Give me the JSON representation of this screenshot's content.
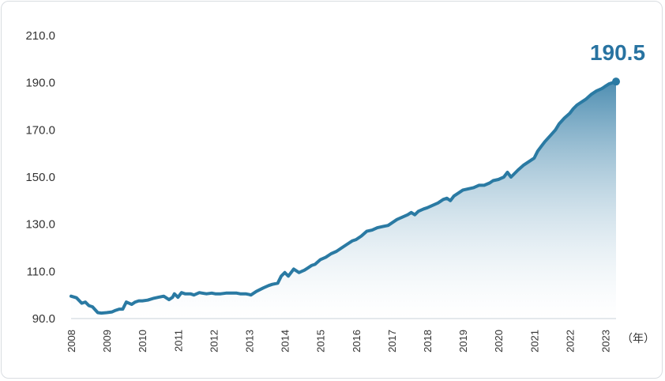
{
  "chart_data": {
    "type": "area",
    "title": "",
    "xlabel": "",
    "ylabel": "",
    "x_unit_label": "（年）",
    "ylim": [
      90.0,
      210.0
    ],
    "y_ticks": [
      "90.0",
      "110.0",
      "130.0",
      "150.0",
      "170.0",
      "190.0",
      "210.0"
    ],
    "x_ticks": [
      "2008",
      "2009",
      "2010",
      "2011",
      "2012",
      "2013",
      "2014",
      "2015",
      "2016",
      "2017",
      "2018",
      "2019",
      "2020",
      "2021",
      "2022",
      "2023"
    ],
    "x_range": [
      2008.0,
      2023.3
    ],
    "latest_value_label": "190.5",
    "grid": false,
    "series": [
      {
        "x": [
          2008.0,
          2008.15,
          2008.3,
          2008.4,
          2008.5,
          2008.6,
          2008.75,
          2008.85,
          2009.0,
          2009.15,
          2009.25,
          2009.35,
          2009.45,
          2009.55,
          2009.7,
          2009.8,
          2009.9,
          2010.0,
          2010.15,
          2010.3,
          2010.45,
          2010.6,
          2010.75,
          2010.85,
          2010.9,
          2011.0,
          2011.1,
          2011.2,
          2011.35,
          2011.45,
          2011.6,
          2011.8,
          2011.95,
          2012.05,
          2012.2,
          2012.35,
          2012.5,
          2012.65,
          2012.75,
          2012.9,
          2013.0,
          2013.05,
          2013.2,
          2013.4,
          2013.55,
          2013.65,
          2013.8,
          2013.9,
          2014.0,
          2014.1,
          2014.25,
          2014.4,
          2014.55,
          2014.65,
          2014.75,
          2014.85,
          2015.0,
          2015.15,
          2015.3,
          2015.45,
          2015.6,
          2015.75,
          2015.9,
          2016.0,
          2016.15,
          2016.3,
          2016.45,
          2016.6,
          2016.75,
          2016.9,
          2017.0,
          2017.15,
          2017.3,
          2017.45,
          2017.55,
          2017.65,
          2017.75,
          2017.9,
          2018.0,
          2018.15,
          2018.3,
          2018.45,
          2018.55,
          2018.65,
          2018.75,
          2018.9,
          2019.0,
          2019.15,
          2019.3,
          2019.45,
          2019.6,
          2019.75,
          2019.85,
          2020.0,
          2020.15,
          2020.25,
          2020.35,
          2020.45,
          2020.55,
          2020.7,
          2020.85,
          2021.0,
          2021.1,
          2021.2,
          2021.3,
          2021.45,
          2021.6,
          2021.7,
          2021.85,
          2022.0,
          2022.1,
          2022.2,
          2022.3,
          2022.45,
          2022.6,
          2022.75,
          2022.9,
          2023.0,
          2023.1,
          2023.2,
          2023.3
        ],
        "values": [
          99.5,
          98.8,
          96.5,
          97.0,
          95.5,
          95.0,
          92.5,
          92.3,
          92.5,
          92.8,
          93.5,
          94.0,
          94.0,
          97.0,
          96.0,
          97.0,
          97.5,
          97.5,
          97.8,
          98.5,
          99.0,
          99.5,
          98.0,
          99.0,
          100.5,
          99.0,
          101.0,
          100.5,
          100.5,
          100.0,
          101.0,
          100.5,
          100.8,
          100.5,
          100.5,
          100.8,
          100.8,
          100.8,
          100.5,
          100.5,
          100.2,
          100.0,
          101.5,
          103.0,
          104.0,
          104.5,
          105.0,
          108.0,
          109.5,
          108.0,
          111.0,
          109.5,
          110.5,
          111.5,
          112.5,
          113.0,
          115.0,
          116.0,
          117.5,
          118.5,
          120.0,
          121.5,
          123.0,
          123.5,
          125.0,
          127.0,
          127.5,
          128.5,
          129.0,
          129.5,
          130.5,
          132.0,
          133.0,
          134.0,
          135.0,
          134.0,
          135.5,
          136.5,
          137.0,
          138.0,
          139.0,
          140.5,
          141.0,
          140.0,
          142.0,
          143.5,
          144.5,
          145.0,
          145.5,
          146.5,
          146.5,
          147.5,
          148.5,
          149.0,
          150.0,
          152.0,
          150.0,
          151.5,
          153.0,
          155.0,
          156.5,
          158.0,
          161.0,
          163.0,
          165.0,
          167.5,
          170.0,
          172.5,
          175.0,
          177.0,
          179.0,
          180.5,
          181.5,
          183.0,
          185.0,
          186.5,
          187.5,
          188.5,
          189.5,
          190.0,
          190.5
        ]
      }
    ]
  },
  "colors": {
    "line": "#2a7aa3",
    "fill_top": "#2f7aa4",
    "fill_bottom": "#ffffff",
    "callout": "#2873a1",
    "axis": "#c8d2da"
  }
}
